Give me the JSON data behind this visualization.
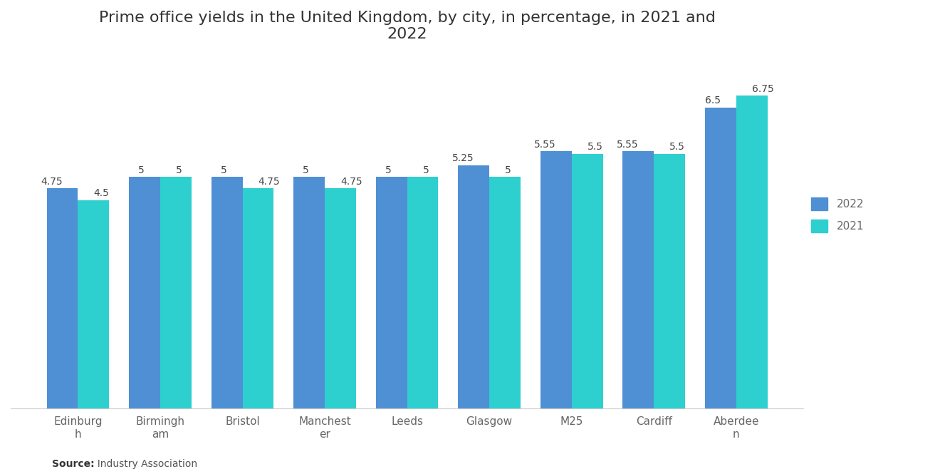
{
  "title": "Prime office yields in the United Kingdom, by city, in percentage, in 2021 and\n2022",
  "categories": [
    "Edinburgh",
    "Birmingham",
    "Bristol",
    "Manchester",
    "Leeds",
    "Glasgow",
    "M25",
    "Cardiff",
    "Aberdeen"
  ],
  "xtick_labels": [
    "Edinburg\nh",
    "Birmingh\nam",
    "Bristol",
    "Manchest\ner",
    "Leeds",
    "Glasgow",
    "M25",
    "Cardiff",
    "Aberdee\nn"
  ],
  "values_2022": [
    4.75,
    5.0,
    5.0,
    5.0,
    5.0,
    5.25,
    5.55,
    5.55,
    6.5
  ],
  "values_2021": [
    4.5,
    5.0,
    4.75,
    4.75,
    5.0,
    5.0,
    5.5,
    5.5,
    6.75
  ],
  "color_2022": "#4f8fd4",
  "color_2021": "#2ecfcf",
  "bar_width": 0.38,
  "title_fontsize": 16,
  "legend_labels": [
    "2022",
    "2021"
  ],
  "source_bold": "Source:",
  "source_rest": "  Industry Association",
  "ylim": [
    0,
    7.6
  ],
  "background_color": "#ffffff",
  "label_fontsize": 10,
  "axis_label_fontsize": 11,
  "legend_fontsize": 11
}
